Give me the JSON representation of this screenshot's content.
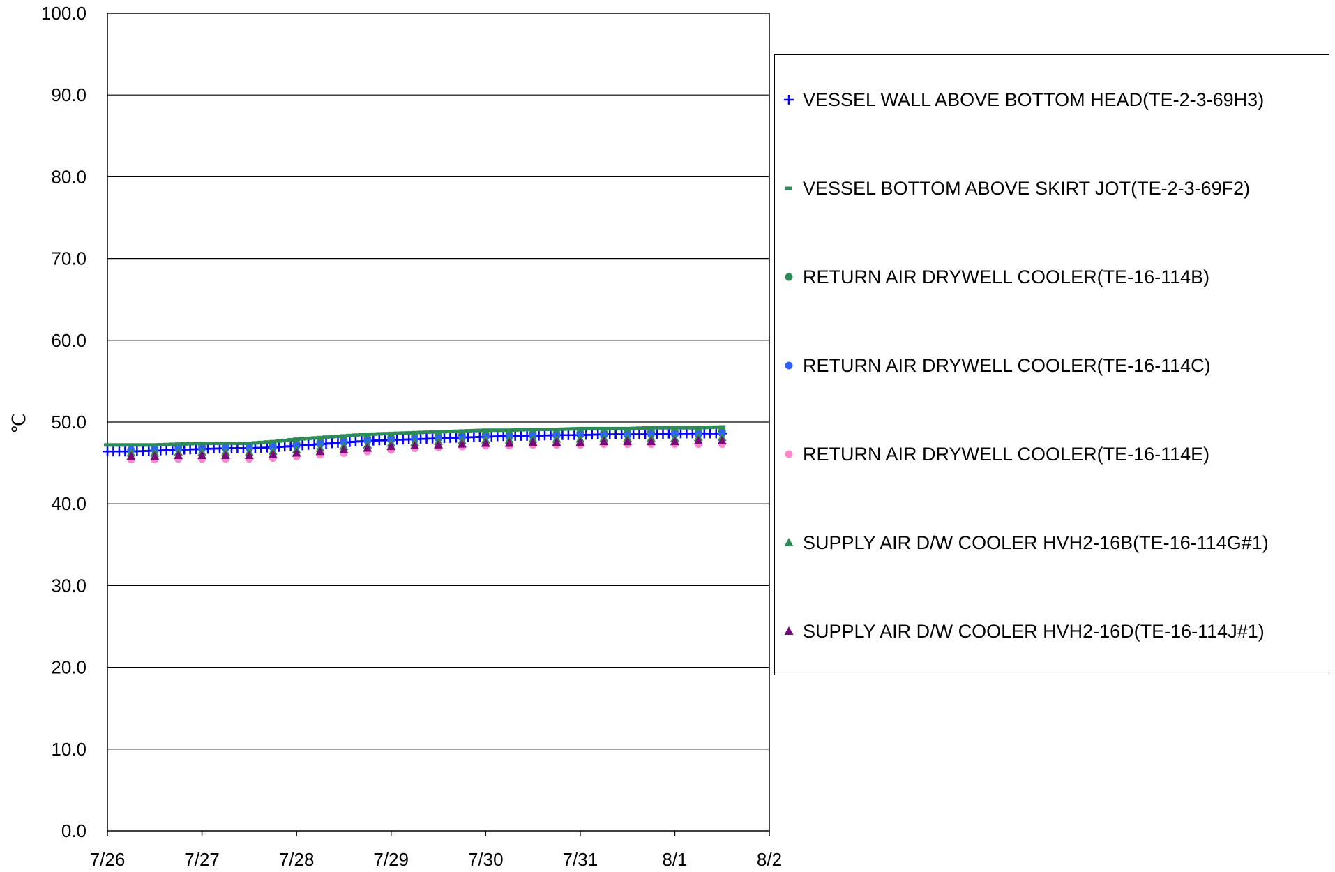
{
  "chart_data": {
    "type": "scatter",
    "ylabel": "℃",
    "xlabel": "",
    "ylim": [
      0,
      100
    ],
    "y_ticks": [
      "0.0",
      "10.0",
      "20.0",
      "30.0",
      "40.0",
      "50.0",
      "60.0",
      "70.0",
      "80.0",
      "90.0",
      "100.0"
    ],
    "x_ticks": [
      "7/26",
      "7/27",
      "7/28",
      "7/29",
      "7/30",
      "7/31",
      "8/1",
      "8/2"
    ],
    "grid": "horizontal",
    "legend_position": "right",
    "series": [
      {
        "name": "VESSEL WALL ABOVE BOTTOM HEAD(TE-2-3-69H3)",
        "marker": "plus",
        "color": "#0000ff",
        "x": [
          0.0,
          0.25,
          0.5,
          0.75,
          1.0,
          1.25,
          1.5,
          1.75,
          2.0,
          2.25,
          2.5,
          2.75,
          3.0,
          3.25,
          3.5,
          3.75,
          4.0,
          4.25,
          4.5,
          4.75,
          5.0,
          5.25,
          5.5,
          5.75,
          6.0,
          6.25,
          6.5
        ],
        "y": [
          46.4,
          46.4,
          46.5,
          46.6,
          46.7,
          46.8,
          46.8,
          46.9,
          47.1,
          47.3,
          47.5,
          47.7,
          47.8,
          47.9,
          48.0,
          48.1,
          48.2,
          48.3,
          48.3,
          48.4,
          48.4,
          48.5,
          48.5,
          48.5,
          48.6,
          48.6,
          48.6
        ]
      },
      {
        "name": "VESSEL BOTTOM ABOVE SKIRT JOT(TE-2-3-69F2)",
        "marker": "dash",
        "color": "#2e8b57",
        "x": [
          0.0,
          0.25,
          0.5,
          0.75,
          1.0,
          1.25,
          1.5,
          1.75,
          2.0,
          2.25,
          2.5,
          2.75,
          3.0,
          3.25,
          3.5,
          3.75,
          4.0,
          4.25,
          4.5,
          4.75,
          5.0,
          5.25,
          5.5,
          5.75,
          6.0,
          6.25,
          6.5
        ],
        "y": [
          47.2,
          47.2,
          47.2,
          47.3,
          47.4,
          47.4,
          47.4,
          47.6,
          47.9,
          48.1,
          48.3,
          48.5,
          48.6,
          48.7,
          48.8,
          48.9,
          49.0,
          49.0,
          49.1,
          49.1,
          49.2,
          49.2,
          49.2,
          49.3,
          49.3,
          49.3,
          49.4
        ]
      },
      {
        "name": "RETURN AIR DRYWELL COOLER(TE-16-114B)",
        "marker": "circle",
        "color": "#2e8b57",
        "x": [
          0.5,
          0.75,
          1.0,
          1.25,
          1.5,
          1.75,
          2.0,
          2.25,
          2.5,
          2.75,
          3.0,
          3.25,
          3.5,
          3.75,
          4.0,
          4.25,
          4.5,
          4.75,
          5.0,
          5.25,
          5.5,
          5.75,
          6.0,
          6.25,
          6.5
        ],
        "y": [
          46.9,
          47.0,
          47.0,
          47.0,
          47.1,
          47.2,
          47.4,
          47.6,
          47.8,
          48.0,
          48.1,
          48.2,
          48.3,
          48.4,
          48.5,
          48.5,
          48.6,
          48.6,
          48.7,
          48.7,
          48.7,
          48.8,
          48.8,
          48.8,
          48.9
        ]
      },
      {
        "name": "RETURN AIR DRYWELL COOLER(TE-16-114C)",
        "marker": "circle",
        "color": "#3060ff",
        "x": [
          0.25,
          0.5,
          0.75,
          1.0,
          1.25,
          1.5,
          1.75,
          2.0,
          2.25,
          2.5,
          2.75,
          3.0,
          3.25,
          3.5,
          3.75,
          4.0,
          4.25,
          4.5,
          4.75,
          5.0,
          5.25,
          5.5,
          5.75,
          6.0,
          6.25,
          6.5
        ],
        "y": [
          46.6,
          46.6,
          46.7,
          46.7,
          46.8,
          46.8,
          46.9,
          47.1,
          47.3,
          47.5,
          47.7,
          47.8,
          47.9,
          48.0,
          48.1,
          48.2,
          48.2,
          48.3,
          48.3,
          48.4,
          48.4,
          48.4,
          48.5,
          48.5,
          48.5,
          48.6
        ]
      },
      {
        "name": "RETURN AIR DRYWELL COOLER(TE-16-114E)",
        "marker": "circle",
        "color": "#ff88cc",
        "x": [
          0.25,
          0.5,
          0.75,
          1.0,
          1.25,
          1.5,
          1.75,
          2.0,
          2.25,
          2.5,
          2.75,
          3.0,
          3.25,
          3.5,
          3.75,
          4.0,
          4.25,
          4.5,
          4.75,
          5.0,
          5.25,
          5.5,
          5.75,
          6.0,
          6.25,
          6.5
        ],
        "y": [
          45.4,
          45.4,
          45.5,
          45.5,
          45.5,
          45.5,
          45.6,
          45.8,
          46.0,
          46.2,
          46.4,
          46.6,
          46.8,
          46.9,
          47.0,
          47.1,
          47.1,
          47.2,
          47.2,
          47.2,
          47.3,
          47.3,
          47.3,
          47.3,
          47.3,
          47.3
        ]
      },
      {
        "name": "SUPPLY AIR D/W COOLER HVH2-16B(TE-16-114G#1)",
        "marker": "triangle",
        "color": "#2e8b57",
        "x": [
          0.25,
          0.5,
          0.75,
          1.0,
          1.25,
          1.5,
          1.75,
          2.0,
          2.25,
          2.5,
          2.75,
          3.0,
          3.25,
          3.5,
          3.75,
          4.0,
          4.25,
          4.5,
          4.75,
          5.0,
          5.25,
          5.5,
          5.75,
          6.0,
          6.25,
          6.5
        ],
        "y": [
          46.2,
          46.2,
          46.3,
          46.3,
          46.3,
          46.3,
          46.4,
          46.6,
          46.8,
          47.0,
          47.2,
          47.4,
          47.5,
          47.6,
          47.7,
          47.8,
          47.8,
          47.9,
          47.9,
          47.9,
          48.0,
          48.0,
          48.0,
          48.0,
          48.1,
          48.1
        ]
      },
      {
        "name": "SUPPLY AIR D/W COOLER HVH2-16D(TE-16-114J#1)",
        "marker": "triangle",
        "color": "#7a0a7a",
        "x": [
          0.25,
          0.5,
          0.75,
          1.0,
          1.25,
          1.5,
          1.75,
          2.0,
          2.25,
          2.5,
          2.75,
          3.0,
          3.25,
          3.5,
          3.75,
          4.0,
          4.25,
          4.5,
          4.75,
          5.0,
          5.25,
          5.5,
          5.75,
          6.0,
          6.25,
          6.5
        ],
        "y": [
          45.8,
          45.8,
          45.9,
          45.9,
          45.9,
          45.9,
          46.0,
          46.2,
          46.4,
          46.6,
          46.8,
          47.0,
          47.1,
          47.2,
          47.3,
          47.4,
          47.4,
          47.5,
          47.5,
          47.5,
          47.6,
          47.6,
          47.6,
          47.6,
          47.7,
          47.7
        ]
      }
    ]
  }
}
